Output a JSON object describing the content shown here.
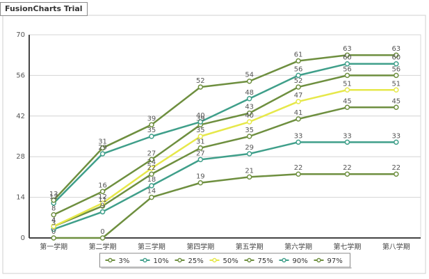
{
  "watermark": "FusionCharts Trial",
  "chart_data": {
    "type": "line",
    "categories": [
      "第一学期",
      "第二学期",
      "第三学期",
      "第四学期",
      "第五学期",
      "第六学期",
      "第七学期",
      "第八学期"
    ],
    "ylim": [
      0,
      70
    ],
    "yticks": [
      0,
      14,
      28,
      42,
      56,
      70
    ],
    "legend_position": "bottom",
    "grid": true,
    "series": [
      {
        "name": "3%",
        "color": "#6e8f3f",
        "values": [
          0,
          0,
          14,
          19,
          21,
          22,
          22,
          22
        ]
      },
      {
        "name": "10%",
        "color": "#3f9f8a",
        "values": [
          3,
          9,
          18,
          27,
          29,
          33,
          33,
          33
        ]
      },
      {
        "name": "25%",
        "color": "#6e8f3f",
        "values": [
          4,
          11,
          22,
          31,
          35,
          41,
          45,
          45
        ]
      },
      {
        "name": "50%",
        "color": "#e6e84a",
        "values": [
          4,
          12,
          24,
          35,
          40,
          47,
          51,
          51
        ]
      },
      {
        "name": "75%",
        "color": "#6e8f3f",
        "values": [
          8,
          16,
          27,
          39,
          43,
          52,
          56,
          56
        ]
      },
      {
        "name": "90%",
        "color": "#3f9f8a",
        "values": [
          12,
          29,
          35,
          40,
          48,
          56,
          60,
          60
        ]
      },
      {
        "name": "97%",
        "color": "#6e8f3f",
        "values": [
          13,
          31,
          39,
          52,
          54,
          61,
          63,
          63
        ]
      }
    ]
  }
}
